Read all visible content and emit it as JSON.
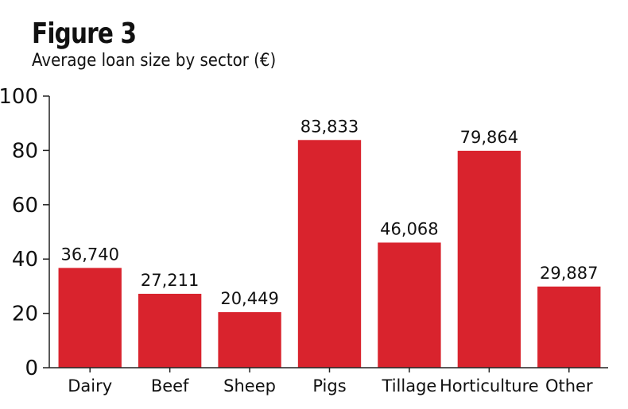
{
  "figure": {
    "title": "Figure 3",
    "subtitle": "Average loan size by sector (€)"
  },
  "chart_data": {
    "type": "bar",
    "title": "Figure 3",
    "subtitle": "Average loan size by sector (€)",
    "categories": [
      "Dairy",
      "Beef",
      "Sheep",
      "Pigs",
      "Tillage",
      "Horticulture",
      "Other"
    ],
    "values": [
      36740,
      27211,
      20449,
      83833,
      46068,
      79864,
      29887
    ],
    "data_labels": [
      "36,740",
      "27,211",
      "20,449",
      "83,833",
      "46,068",
      "79,864",
      "29,887"
    ],
    "yticks": [
      "0",
      "20",
      "40",
      "60",
      "80",
      "100"
    ],
    "ylim": [
      0,
      100000
    ],
    "xlabel": "",
    "ylabel": "",
    "grid": false,
    "legend": "none",
    "bar_color": "#d9232d"
  }
}
